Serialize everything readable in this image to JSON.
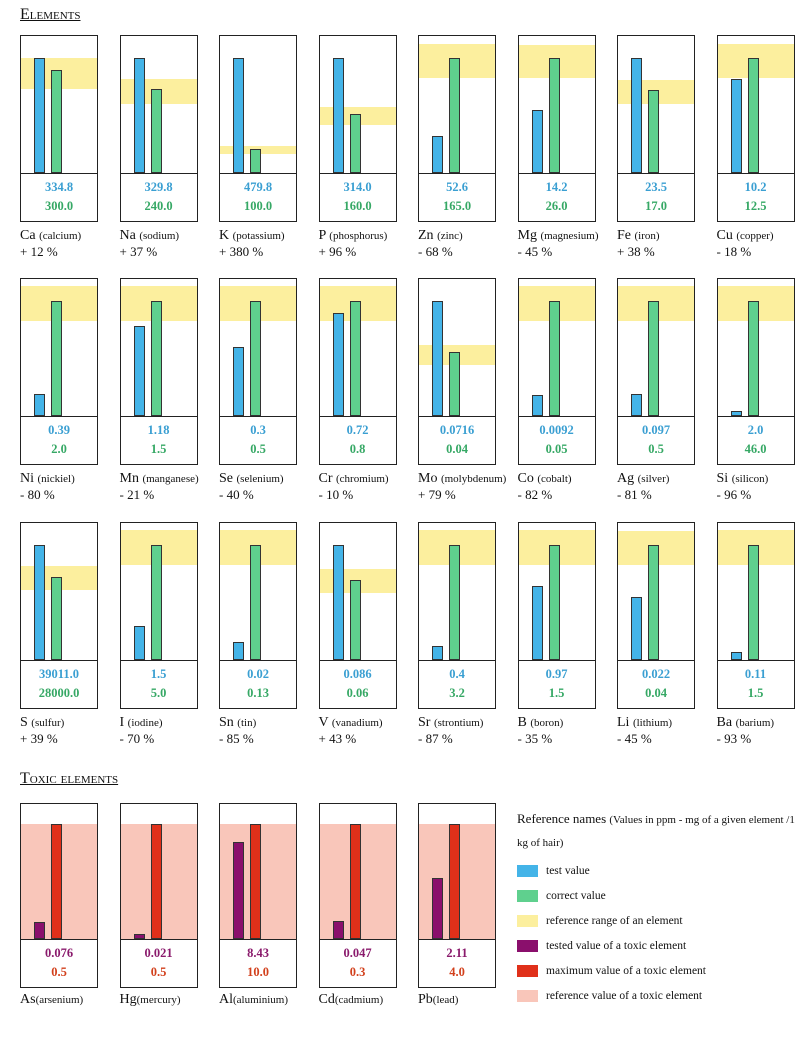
{
  "headings": {
    "elements": "Elements",
    "toxic": "Toxic elements"
  },
  "legend": {
    "title": "Reference names",
    "note": "(Values in ppm - mg of a given element /1 kg of hair)",
    "items": [
      {
        "label": "test value",
        "color": "#44b4e8"
      },
      {
        "label": "correct value",
        "color": "#5fd08e"
      },
      {
        "label": "reference range of an element",
        "color": "#fcef9e"
      },
      {
        "label": "tested value of a toxic element",
        "color": "#8a0f6c"
      },
      {
        "label": "maximum value of a toxic element",
        "color": "#e0301a"
      },
      {
        "label": "reference value of a toxic element",
        "color": "#f9c6ba"
      }
    ]
  },
  "elements": [
    {
      "symbol": "Ca",
      "name": "(calcium)",
      "test": "334.8",
      "correct": "300.0",
      "range": [
        245,
        335
      ],
      "diff": "+ 12 %"
    },
    {
      "symbol": "Na",
      "name": "(sodium)",
      "test": "329.8",
      "correct": "240.0",
      "range": [
        198,
        270
      ],
      "diff": "+ 37 %"
    },
    {
      "symbol": "K",
      "name": "(potassium)",
      "test": "479.8",
      "correct": "100.0",
      "range": [
        79,
        113
      ],
      "diff": "+ 380 %"
    },
    {
      "symbol": "P",
      "name": "(phosphorus)",
      "test": "314.0",
      "correct": "160.0",
      "range": [
        131,
        180
      ],
      "diff": "+ 96 %"
    },
    {
      "symbol": "Zn",
      "name": "(zinc)",
      "test": "52.6",
      "correct": "165.0",
      "range": [
        136,
        185
      ],
      "diff": "- 68 %"
    },
    {
      "symbol": "Mg",
      "name": "(magnesium)",
      "test": "14.2",
      "correct": "26.0",
      "range": [
        21.5,
        29
      ],
      "diff": "- 45 %"
    },
    {
      "symbol": "Fe",
      "name": "(iron)",
      "test": "23.5",
      "correct": "17.0",
      "range": [
        14,
        19
      ],
      "diff": "+ 38 %"
    },
    {
      "symbol": "Cu",
      "name": "(copper)",
      "test": "10.2",
      "correct": "12.5",
      "range": [
        10.3,
        14
      ],
      "diff": "- 18 %"
    },
    {
      "symbol": "Ni",
      "name": "(nickiel)",
      "test": "0.39",
      "correct": "2.0",
      "range": [
        1.65,
        2.26
      ],
      "diff": "- 80 %"
    },
    {
      "symbol": "Mn",
      "name": "(manganese)",
      "test": "1.18",
      "correct": "1.5",
      "range": [
        1.24,
        1.7
      ],
      "diff": "- 21 %"
    },
    {
      "symbol": "Se",
      "name": "(selenium)",
      "test": "0.3",
      "correct": "0.5",
      "range": [
        0.413,
        0.565
      ],
      "diff": "- 40 %"
    },
    {
      "symbol": "Cr",
      "name": "(chromium)",
      "test": "0.72",
      "correct": "0.8",
      "range": [
        0.661,
        0.904
      ],
      "diff": "- 10 %"
    },
    {
      "symbol": "Mo",
      "name": "(molybdenum)",
      "test": "0.0716",
      "correct": "0.04",
      "range": [
        0.0318,
        0.0442
      ],
      "diff": "+ 79 %"
    },
    {
      "symbol": "Co",
      "name": "(cobalt)",
      "test": "0.0092",
      "correct": "0.05",
      "range": [
        0.0413,
        0.0565
      ],
      "diff": "- 82 %"
    },
    {
      "symbol": "Ag",
      "name": "(silver)",
      "test": "0.097",
      "correct": "0.5",
      "range": [
        0.413,
        0.565
      ],
      "diff": "- 81 %"
    },
    {
      "symbol": "Si",
      "name": "(silicon)",
      "test": "2.0",
      "correct": "46.0",
      "range": [
        38,
        52
      ],
      "diff": "- 96 %"
    },
    {
      "symbol": "S",
      "name": "(sulfur)",
      "test": "39011.0",
      "correct": "28000.0",
      "range": [
        23700,
        31900
      ],
      "diff": "+ 39 %"
    },
    {
      "symbol": "I",
      "name": "(iodine)",
      "test": "1.5",
      "correct": "5.0",
      "range": [
        4.13,
        5.65
      ],
      "diff": "- 70 %"
    },
    {
      "symbol": "Sn",
      "name": "(tin)",
      "test": "0.02",
      "correct": "0.13",
      "range": [
        0.107,
        0.147
      ],
      "diff": "- 85 %"
    },
    {
      "symbol": "V",
      "name": "(vanadium)",
      "test": "0.086",
      "correct": "0.06",
      "range": [
        0.05,
        0.068
      ],
      "diff": "+ 43 %"
    },
    {
      "symbol": "Sr",
      "name": "(strontium)",
      "test": "0.4",
      "correct": "3.2",
      "range": [
        2.64,
        3.62
      ],
      "diff": "- 87 %"
    },
    {
      "symbol": "B",
      "name": "(boron)",
      "test": "0.97",
      "correct": "1.5",
      "range": [
        1.24,
        1.7
      ],
      "diff": "- 35 %"
    },
    {
      "symbol": "Li",
      "name": "(lithium)",
      "test": "0.022",
      "correct": "0.04",
      "range": [
        0.033,
        0.045
      ],
      "diff": "- 45 %"
    },
    {
      "symbol": "Ba",
      "name": "(barium)",
      "test": "0.11",
      "correct": "1.5",
      "range": [
        1.24,
        1.7
      ],
      "diff": "- 93 %"
    }
  ],
  "toxic": [
    {
      "symbol": "As",
      "name": "(arsenium)",
      "test": "0.076",
      "max": "0.5"
    },
    {
      "symbol": "Hg",
      "name": "(mercury)",
      "test": "0.021",
      "max": "0.5"
    },
    {
      "symbol": "Al",
      "name": "(aluminium)",
      "test": "8.43",
      "max": "10.0"
    },
    {
      "symbol": "Cd",
      "name": "(cadmium)",
      "test": "0.047",
      "max": "0.3"
    },
    {
      "symbol": "Pb",
      "name": "(lead)",
      "test": "2.11",
      "max": "4.0"
    }
  ]
}
